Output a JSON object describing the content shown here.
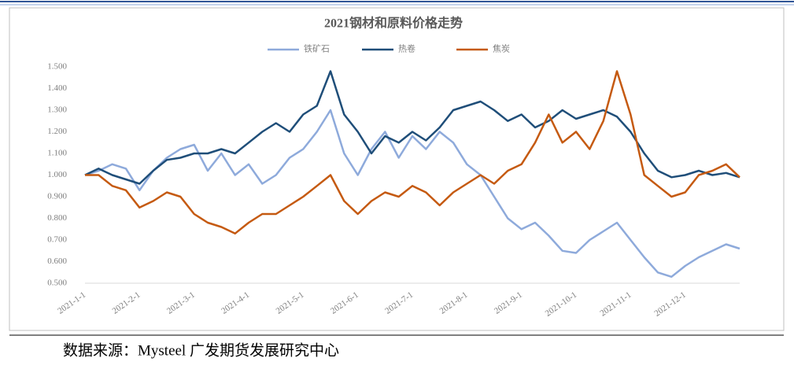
{
  "chart_data": {
    "type": "line",
    "title": "2021钢材和原料价格走势",
    "source": "数据来源：Mysteel 广发期货发展研究中心",
    "categories": [
      "2021-1-1",
      null,
      null,
      null,
      "2021-2-1",
      null,
      null,
      null,
      "2021-3-1",
      null,
      null,
      null,
      "2021-4-1",
      null,
      null,
      null,
      "2021-5-1",
      null,
      null,
      null,
      "2021-6-1",
      null,
      null,
      null,
      "2021-7-1",
      null,
      null,
      null,
      "2021-8-1",
      null,
      null,
      null,
      "2021-9-1",
      null,
      null,
      null,
      "2021-10-1",
      null,
      null,
      null,
      "2021-11-1",
      null,
      null,
      null,
      "2021-12-1",
      null,
      null,
      null,
      null
    ],
    "series": [
      {
        "name": "铁矿石",
        "color": "#8eaadb",
        "values": [
          1.0,
          1.02,
          1.05,
          1.03,
          0.93,
          1.02,
          1.08,
          1.12,
          1.14,
          1.02,
          1.1,
          1.0,
          1.05,
          0.96,
          1.0,
          1.08,
          1.12,
          1.2,
          1.3,
          1.1,
          1.0,
          1.12,
          1.2,
          1.08,
          1.18,
          1.12,
          1.2,
          1.15,
          1.05,
          1.0,
          0.9,
          0.8,
          0.75,
          0.78,
          0.72,
          0.65,
          0.64,
          0.7,
          0.74,
          0.78,
          0.7,
          0.62,
          0.55,
          0.53,
          0.58,
          0.62,
          0.65,
          0.68,
          0.66
        ]
      },
      {
        "name": "热卷",
        "color": "#1f4e79",
        "values": [
          1.0,
          1.03,
          1.0,
          0.98,
          0.96,
          1.02,
          1.07,
          1.08,
          1.1,
          1.1,
          1.12,
          1.1,
          1.15,
          1.2,
          1.24,
          1.2,
          1.28,
          1.32,
          1.48,
          1.28,
          1.2,
          1.1,
          1.18,
          1.15,
          1.2,
          1.16,
          1.22,
          1.3,
          1.32,
          1.34,
          1.3,
          1.25,
          1.28,
          1.22,
          1.25,
          1.3,
          1.26,
          1.28,
          1.3,
          1.27,
          1.2,
          1.1,
          1.02,
          0.99,
          1.0,
          1.02,
          1.0,
          1.01,
          0.99
        ]
      },
      {
        "name": "焦炭",
        "color": "#c55a11",
        "values": [
          1.0,
          1.0,
          0.95,
          0.93,
          0.85,
          0.88,
          0.92,
          0.9,
          0.82,
          0.78,
          0.76,
          0.73,
          0.78,
          0.82,
          0.82,
          0.86,
          0.9,
          0.95,
          1.0,
          0.88,
          0.82,
          0.88,
          0.92,
          0.9,
          0.95,
          0.92,
          0.86,
          0.92,
          0.96,
          1.0,
          0.96,
          1.02,
          1.05,
          1.15,
          1.28,
          1.15,
          1.2,
          1.12,
          1.25,
          1.48,
          1.28,
          1.0,
          0.95,
          0.9,
          0.92,
          1.0,
          1.02,
          1.05,
          0.99
        ]
      }
    ],
    "ylim": [
      0.5,
      1.5
    ],
    "yticks": [
      {
        "value": 0.5,
        "label": "0.500"
      },
      {
        "value": 0.6,
        "label": "0.600"
      },
      {
        "value": 0.7,
        "label": "0.700"
      },
      {
        "value": 0.8,
        "label": "0.800"
      },
      {
        "value": 0.9,
        "label": "0.900"
      },
      {
        "value": 1.0,
        "label": "1.000"
      },
      {
        "value": 1.1,
        "label": "1.100"
      },
      {
        "value": 1.2,
        "label": "1.200"
      },
      {
        "value": 1.3,
        "label": "1.300"
      },
      {
        "value": 1.4,
        "label": "1.400"
      },
      {
        "value": 1.5,
        "label": "1.500"
      }
    ],
    "grid": false,
    "legend": "top"
  }
}
